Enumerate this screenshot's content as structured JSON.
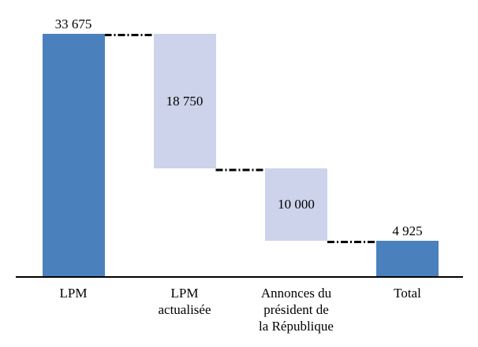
{
  "chart_data": {
    "type": "bar",
    "subtype": "waterfall",
    "title": "",
    "xlabel": "",
    "ylabel": "",
    "ylim": [
      0,
      33675
    ],
    "grid": false,
    "legend_position": "none",
    "categories": [
      "LPM",
      "LPM actualisée",
      "Annonces du président de la République",
      "Total"
    ],
    "values": [
      33675,
      -18750,
      -10000,
      4925
    ],
    "bars": [
      {
        "category": "LPM",
        "category_display": "LPM",
        "value": 33675,
        "value_label": "33 675",
        "start": 0,
        "end": 33675,
        "kind": "total",
        "label_position": "above",
        "color": "#4A81BD"
      },
      {
        "category": "LPM actualisée",
        "category_display": "LPM actualisée",
        "value": -18750,
        "value_label": "18 750",
        "start": 33675,
        "end": 14925,
        "kind": "decrease",
        "label_position": "inside",
        "color": "#CCD3EA"
      },
      {
        "category": "Annonces du président de la République",
        "category_display": "Annonces du\nprésident de\nla République",
        "value": -10000,
        "value_label": "10 000",
        "start": 14925,
        "end": 4925,
        "kind": "decrease",
        "label_position": "inside",
        "color": "#CCD3EA"
      },
      {
        "category": "Total",
        "category_display": "Total",
        "value": 4925,
        "value_label": "4 925",
        "start": 0,
        "end": 4925,
        "kind": "total",
        "label_position": "above",
        "color": "#4A81BD"
      }
    ],
    "connectors": [
      {
        "from": 0,
        "to": 1,
        "level": 33675
      },
      {
        "from": 1,
        "to": 2,
        "level": 14925
      },
      {
        "from": 2,
        "to": 3,
        "level": 4925
      }
    ],
    "colors": {
      "total_bar": "#4A81BD",
      "delta_bar": "#CCD3EA",
      "connector": "#000000",
      "axis": "#000000",
      "background": "#FFFFFF",
      "text": "#000000"
    }
  }
}
